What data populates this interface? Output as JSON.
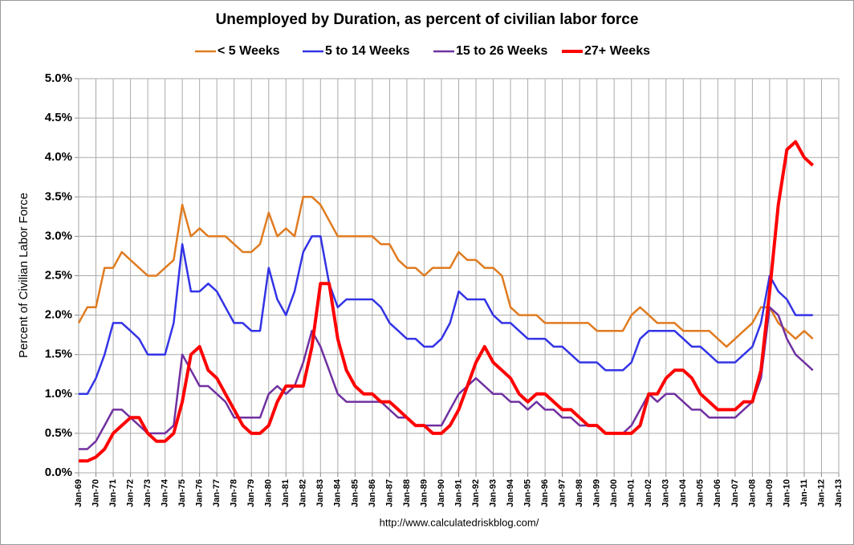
{
  "chart_data": {
    "type": "line",
    "title": "Unemployed by Duration, as percent of civilian labor force",
    "y_label": "Percent of Civilian Labor Force",
    "source": "http://www.calculatedriskblog.com/",
    "categories": [
      "Jan-69",
      null,
      "Jan-70",
      null,
      "Jan-71",
      null,
      "Jan-72",
      null,
      "Jan-73",
      null,
      "Jan-74",
      null,
      "Jan-75",
      null,
      "Jan-76",
      null,
      "Jan-77",
      null,
      "Jan-78",
      null,
      "Jan-79",
      null,
      "Jan-80",
      null,
      "Jan-81",
      null,
      "Jan-82",
      null,
      "Jan-83",
      null,
      "Jan-84",
      null,
      "Jan-85",
      null,
      "Jan-86",
      null,
      "Jan-87",
      null,
      "Jan-88",
      null,
      "Jan-89",
      null,
      "Jan-90",
      null,
      "Jan-91",
      null,
      "Jan-92",
      null,
      "Jan-93",
      null,
      "Jan-94",
      null,
      "Jan-95",
      null,
      "Jan-96",
      null,
      "Jan-97",
      null,
      "Jan-98",
      null,
      "Jan-99",
      null,
      "Jan-00",
      null,
      "Jan-01",
      null,
      "Jan-02",
      null,
      "Jan-03",
      null,
      "Jan-04",
      null,
      "Jan-05",
      null,
      "Jan-06",
      null,
      "Jan-07",
      null,
      "Jan-08",
      null,
      "Jan-09",
      null,
      "Jan-10",
      null,
      "Jan-11",
      null,
      "Jan-12",
      null,
      "Jan-13"
    ],
    "series": [
      {
        "name": "< 5 Weeks",
        "color": "#e07b20",
        "width": 2.5,
        "values": [
          1.9,
          2.1,
          2.1,
          2.6,
          2.6,
          2.8,
          2.7,
          2.6,
          2.5,
          2.5,
          2.6,
          2.7,
          3.4,
          3.0,
          3.1,
          3.0,
          3.0,
          3.0,
          2.9,
          2.8,
          2.8,
          2.9,
          3.3,
          3.0,
          3.1,
          3.0,
          3.5,
          3.5,
          3.4,
          3.2,
          3.0,
          3.0,
          3.0,
          3.0,
          3.0,
          2.9,
          2.9,
          2.7,
          2.6,
          2.6,
          2.5,
          2.6,
          2.6,
          2.6,
          2.8,
          2.7,
          2.7,
          2.6,
          2.6,
          2.5,
          2.1,
          2.0,
          2.0,
          2.0,
          1.9,
          1.9,
          1.9,
          1.9,
          1.9,
          1.9,
          1.8,
          1.8,
          1.8,
          1.8,
          2.0,
          2.1,
          2.0,
          1.9,
          1.9,
          1.9,
          1.8,
          1.8,
          1.8,
          1.8,
          1.7,
          1.6,
          1.7,
          1.8,
          1.9,
          2.1,
          2.1,
          1.9,
          1.8,
          1.7,
          1.8,
          1.7,
          null,
          null,
          null
        ]
      },
      {
        "name": "5 to 14 Weeks",
        "color": "#3333e6",
        "width": 2.5,
        "values": [
          1.0,
          1.0,
          1.2,
          1.5,
          1.9,
          1.9,
          1.8,
          1.7,
          1.5,
          1.5,
          1.5,
          1.9,
          2.9,
          2.3,
          2.3,
          2.4,
          2.3,
          2.1,
          1.9,
          1.9,
          1.8,
          1.8,
          2.6,
          2.2,
          2.0,
          2.3,
          2.8,
          3.0,
          3.0,
          2.4,
          2.1,
          2.2,
          2.2,
          2.2,
          2.2,
          2.1,
          1.9,
          1.8,
          1.7,
          1.7,
          1.6,
          1.6,
          1.7,
          1.9,
          2.3,
          2.2,
          2.2,
          2.2,
          2.0,
          1.9,
          1.9,
          1.8,
          1.7,
          1.7,
          1.7,
          1.6,
          1.6,
          1.5,
          1.4,
          1.4,
          1.4,
          1.3,
          1.3,
          1.3,
          1.4,
          1.7,
          1.8,
          1.8,
          1.8,
          1.8,
          1.7,
          1.6,
          1.6,
          1.5,
          1.4,
          1.4,
          1.4,
          1.5,
          1.6,
          1.9,
          2.5,
          2.3,
          2.2,
          2.0,
          2.0,
          2.0,
          null,
          null,
          null
        ]
      },
      {
        "name": "15 to 26 Weeks",
        "color": "#7030a0",
        "width": 2.5,
        "values": [
          0.3,
          0.3,
          0.4,
          0.6,
          0.8,
          0.8,
          0.7,
          0.6,
          0.5,
          0.5,
          0.5,
          0.6,
          1.5,
          1.3,
          1.1,
          1.1,
          1.0,
          0.9,
          0.7,
          0.7,
          0.7,
          0.7,
          1.0,
          1.1,
          1.0,
          1.1,
          1.4,
          1.8,
          1.6,
          1.3,
          1.0,
          0.9,
          0.9,
          0.9,
          0.9,
          0.9,
          0.8,
          0.7,
          0.7,
          0.6,
          0.6,
          0.6,
          0.6,
          0.8,
          1.0,
          1.1,
          1.2,
          1.1,
          1.0,
          1.0,
          0.9,
          0.9,
          0.8,
          0.9,
          0.8,
          0.8,
          0.7,
          0.7,
          0.6,
          0.6,
          0.6,
          0.5,
          0.5,
          0.5,
          0.6,
          0.8,
          1.0,
          0.9,
          1.0,
          1.0,
          0.9,
          0.8,
          0.8,
          0.7,
          0.7,
          0.7,
          0.7,
          0.8,
          0.9,
          1.2,
          2.1,
          2.0,
          1.7,
          1.5,
          1.4,
          1.3,
          null,
          null,
          null
        ]
      },
      {
        "name": "27+ Weeks",
        "color": "#ff0000",
        "width": 4,
        "values": [
          0.15,
          0.15,
          0.2,
          0.3,
          0.5,
          0.6,
          0.7,
          0.7,
          0.5,
          0.4,
          0.4,
          0.5,
          0.9,
          1.5,
          1.6,
          1.3,
          1.2,
          1.0,
          0.8,
          0.6,
          0.5,
          0.5,
          0.6,
          0.9,
          1.1,
          1.1,
          1.1,
          1.6,
          2.4,
          2.4,
          1.7,
          1.3,
          1.1,
          1.0,
          1.0,
          0.9,
          0.9,
          0.8,
          0.7,
          0.6,
          0.6,
          0.5,
          0.5,
          0.6,
          0.8,
          1.1,
          1.4,
          1.6,
          1.4,
          1.3,
          1.2,
          1.0,
          0.9,
          1.0,
          1.0,
          0.9,
          0.8,
          0.8,
          0.7,
          0.6,
          0.6,
          0.5,
          0.5,
          0.5,
          0.5,
          0.6,
          1.0,
          1.0,
          1.2,
          1.3,
          1.3,
          1.2,
          1.0,
          0.9,
          0.8,
          0.8,
          0.8,
          0.9,
          0.9,
          1.3,
          2.3,
          3.4,
          4.1,
          4.2,
          4.0,
          3.9,
          null,
          null,
          null
        ]
      }
    ],
    "ylim": [
      0,
      5
    ],
    "yticks": [
      {
        "value": 0,
        "label": "0.0%"
      },
      {
        "value": 0.5,
        "label": "0.5%"
      },
      {
        "value": 1,
        "label": "1.0%"
      },
      {
        "value": 1.5,
        "label": "1.5%"
      },
      {
        "value": 2,
        "label": "2.0%"
      },
      {
        "value": 2.5,
        "label": "2.5%"
      },
      {
        "value": 3,
        "label": "3.0%"
      },
      {
        "value": 3.5,
        "label": "3.5%"
      },
      {
        "value": 4,
        "label": "4.0%"
      },
      {
        "value": 4.5,
        "label": "4.5%"
      },
      {
        "value": 5,
        "label": "5.0%"
      }
    ],
    "grid": true,
    "legend": "top"
  }
}
